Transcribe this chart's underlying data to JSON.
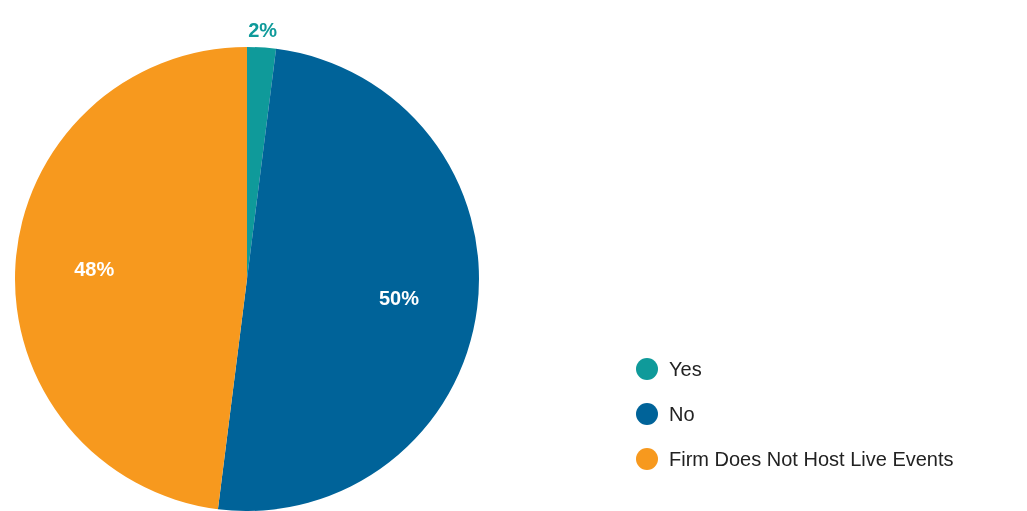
{
  "chart_data": {
    "type": "pie",
    "categories": [
      "Yes",
      "No",
      "Firm Does Not Host Live Events"
    ],
    "values": [
      2,
      50,
      48
    ],
    "colors": [
      "#0f9a9a",
      "#006399",
      "#f7991e"
    ],
    "value_labels": [
      "2%",
      "50%",
      "48%"
    ],
    "legend": "right"
  }
}
